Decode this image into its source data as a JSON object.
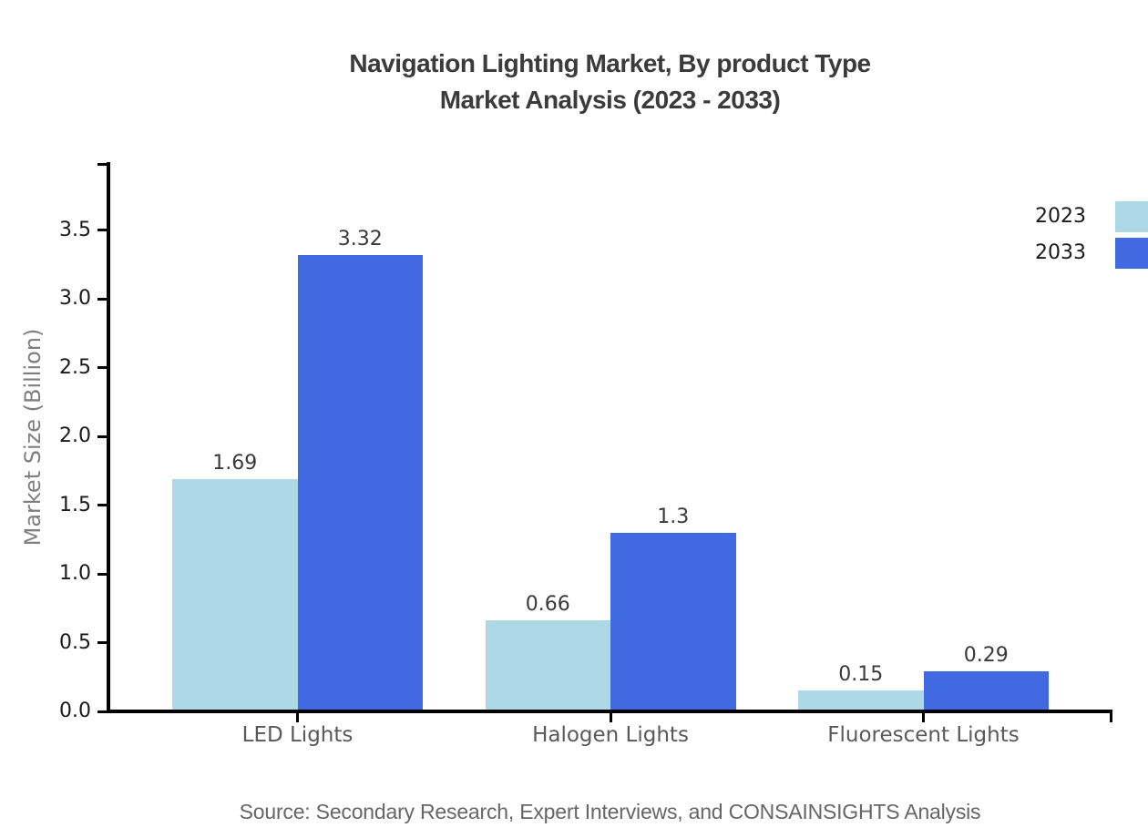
{
  "title": {
    "line1": "Navigation Lighting Market, By product Type",
    "line2": "Market Analysis (2023 - 2033)"
  },
  "chart_data": {
    "type": "bar",
    "title": "Navigation Lighting Market, By product Type Market Analysis (2023 - 2033)",
    "categories": [
      "LED Lights",
      "Halogen Lights",
      "Fluorescent Lights"
    ],
    "series": [
      {
        "name": "2023",
        "color": "#ADD8E6",
        "values": [
          1.69,
          0.66,
          0.15
        ]
      },
      {
        "name": "2033",
        "color": "#4169E1",
        "values": [
          3.32,
          1.3,
          0.29
        ]
      }
    ],
    "xlabel": "",
    "ylabel": "Market Size (Billion)",
    "ylim": [
      0,
      4.0
    ],
    "yticks": [
      0.0,
      0.5,
      1.0,
      1.5,
      2.0,
      2.5,
      3.0,
      3.5
    ],
    "ytick_labels": [
      "0.0",
      "0.5",
      "1.0",
      "1.5",
      "2.0",
      "2.5",
      "3.0",
      "3.5"
    ],
    "grid": false,
    "bar_value_labels_shown": true,
    "legend_position": "upper-right-outside"
  },
  "legend": {
    "items": [
      {
        "label": "2023",
        "color": "#ADD8E6"
      },
      {
        "label": "2033",
        "color": "#4169E1"
      }
    ]
  },
  "source": "Source: Secondary Research, Expert Interviews, and CONSAINSIGHTS Analysis",
  "colors": {
    "series_2023": "#ADD8E6",
    "series_2033": "#4169E1",
    "axis": "#000000",
    "title_text": "#3b3b3b",
    "category_text": "#595959",
    "ylabel_text": "#7f7f7f",
    "source_text": "#666666",
    "tick_text": "#1a1a1a",
    "value_text": "#3a3a3a"
  }
}
